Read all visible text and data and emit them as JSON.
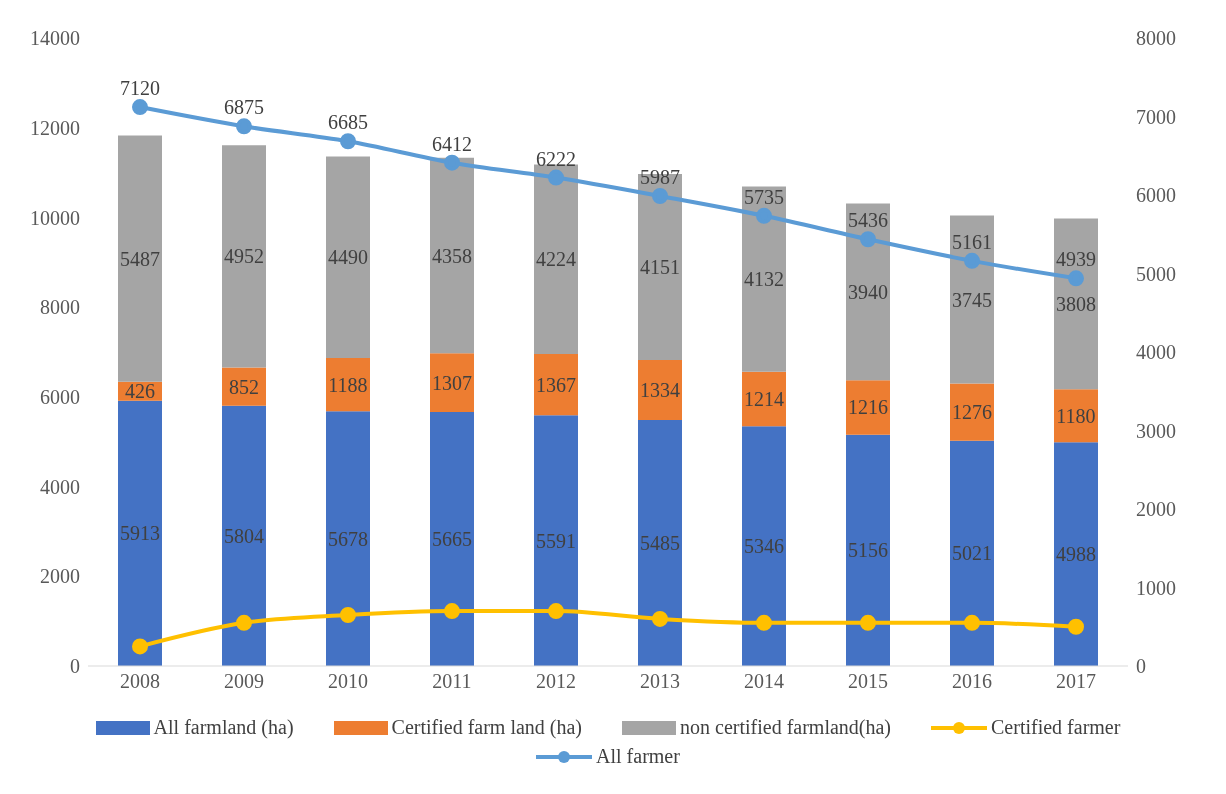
{
  "chart_data": {
    "type": "bar",
    "stacked": true,
    "categories": [
      "2008",
      "2009",
      "2010",
      "2011",
      "2012",
      "2013",
      "2014",
      "2015",
      "2016",
      "2017"
    ],
    "series": [
      {
        "name": "All farmland (ha)",
        "color": "#4472c4",
        "values": [
          5913,
          5804,
          5678,
          5665,
          5591,
          5485,
          5346,
          5156,
          5021,
          4988
        ],
        "value_labels": [
          "5913",
          "5804",
          "5678",
          "5665",
          "5591",
          "5485",
          "5346",
          "5156",
          "5021",
          "4988"
        ]
      },
      {
        "name": "Certified farm land (ha)",
        "color": "#ed7d31",
        "values": [
          426,
          852,
          1188,
          1307,
          1367,
          1334,
          1214,
          1216,
          1276,
          1180
        ],
        "value_labels": [
          "426",
          "852",
          "1188",
          "1307",
          "1367",
          "1334",
          "1214",
          "1216",
          "1276",
          "1180"
        ]
      },
      {
        "name": "non certified farmland(ha)",
        "color": "#a5a5a5",
        "values": [
          5487,
          4952,
          4490,
          4358,
          4224,
          4151,
          4132,
          3940,
          3745,
          3808
        ],
        "value_labels": [
          "5487",
          "4952",
          "4490",
          "4358",
          "4224",
          "4151",
          "4132",
          "3940",
          "3745",
          "3808"
        ]
      },
      {
        "name": "Certified farmer",
        "type": "line",
        "axis": "y2",
        "color": "#ffc000",
        "values": [
          250,
          550,
          650,
          700,
          700,
          600,
          550,
          550,
          550,
          500
        ]
      },
      {
        "name": "All farmer",
        "type": "line",
        "axis": "y2",
        "color": "#5b9bd5",
        "values": [
          7120,
          6875,
          6685,
          6412,
          6222,
          5987,
          5735,
          5436,
          5161,
          4939
        ],
        "value_labels": [
          "7120",
          "6875",
          "6685",
          "6412",
          "6222",
          "5987",
          "5735",
          "5436",
          "5161",
          "4939"
        ]
      }
    ],
    "ylim": [
      0,
      14000
    ],
    "yticks": [
      0,
      2000,
      4000,
      6000,
      8000,
      10000,
      12000,
      14000
    ],
    "y2lim": [
      0,
      8000
    ],
    "y2ticks": [
      0,
      1000,
      2000,
      3000,
      4000,
      5000,
      6000,
      7000,
      8000
    ],
    "legend": "bottom",
    "marker": "circle",
    "line_style": "solid"
  }
}
